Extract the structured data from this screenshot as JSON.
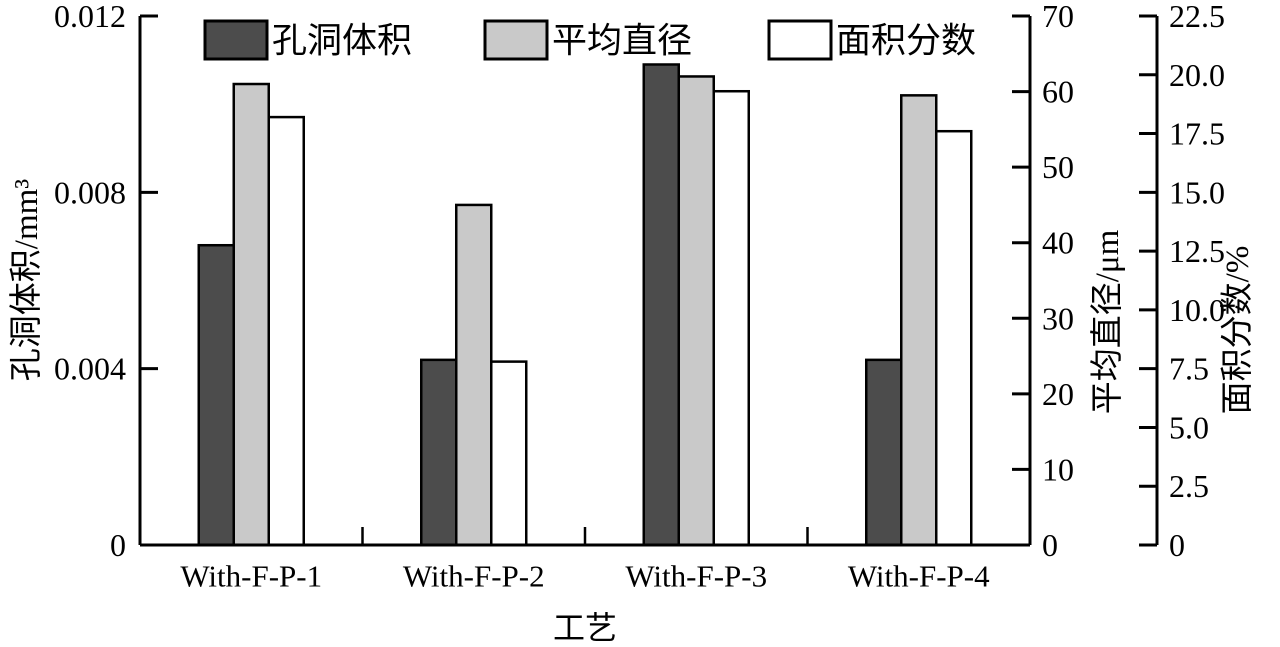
{
  "chart_data": {
    "type": "bar",
    "title": "",
    "xlabel": "工艺",
    "categories": [
      "With-F-P-1",
      "With-F-P-2",
      "With-F-P-3",
      "With-F-P-4"
    ],
    "series": [
      {
        "id": "pore-volume",
        "name": "孔洞体积",
        "axis": "left",
        "color": "#4c4c4c",
        "values": [
          0.0068,
          0.0042,
          0.0109,
          0.0042
        ]
      },
      {
        "id": "avg-diameter",
        "name": "平均直径",
        "axis": "right1",
        "color": "#c9c9c9",
        "values": [
          61,
          45,
          62,
          59.5
        ]
      },
      {
        "id": "area-fraction",
        "name": "面积分数",
        "axis": "right2",
        "color": "#ffffff",
        "values": [
          18.2,
          7.8,
          19.3,
          17.6
        ]
      }
    ],
    "axes": {
      "left": {
        "label": "孔洞体积/mm³",
        "min": 0,
        "max": 0.012,
        "ticks": [
          "0",
          "0.004",
          "0.008",
          "0.012"
        ],
        "tick_values": [
          0,
          0.004,
          0.008,
          0.012
        ]
      },
      "right1": {
        "label": "平均直径/μm",
        "min": 0,
        "max": 70,
        "ticks": [
          "0",
          "10",
          "20",
          "30",
          "40",
          "50",
          "60",
          "70"
        ],
        "tick_values": [
          0,
          10,
          20,
          30,
          40,
          50,
          60,
          70
        ]
      },
      "right2": {
        "label": "面积分数/%",
        "min": 0,
        "max": 22.5,
        "ticks": [
          "0",
          "2.5",
          "5.0",
          "7.5",
          "10.0",
          "12.5",
          "15.0",
          "17.5",
          "20.0",
          "22.5"
        ],
        "tick_values": [
          0,
          2.5,
          5,
          7.5,
          10,
          12.5,
          15,
          17.5,
          20,
          22.5
        ]
      }
    },
    "legend": {
      "position": "top",
      "entries": [
        "孔洞体积",
        "平均直径",
        "面积分数"
      ]
    },
    "grid": false,
    "background": "#ffffff",
    "axis_color": "#000000",
    "bar_border_color": "#000000"
  }
}
